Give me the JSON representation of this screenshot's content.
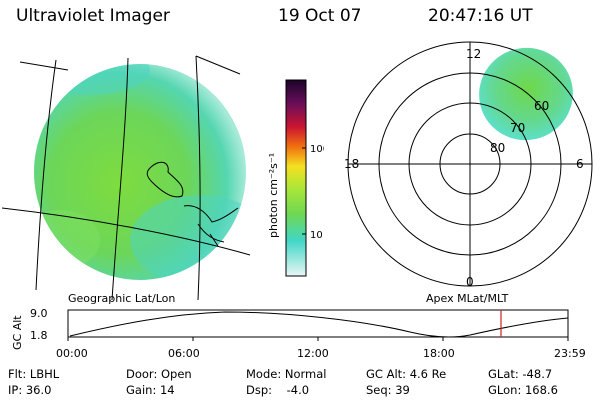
{
  "header": {
    "instrument": "Ultraviolet Imager",
    "date": "19 Oct 07",
    "time": "20:47:16 UT"
  },
  "colorbar": {
    "label": "photon cm⁻²s⁻¹",
    "ticks": [
      "100",
      "10"
    ]
  },
  "polar_plot": {
    "mlt_labels": {
      "top": "12",
      "left": "18",
      "right": "6",
      "bottom": "0"
    },
    "lat_labels": [
      "60",
      "70",
      "80"
    ]
  },
  "geo_label": "Geographic Lat/Lon",
  "apex_label": "Apex MLat/MLT",
  "altitude_plot": {
    "ylabel": "GC Alt",
    "yticks": [
      "9.0",
      "1.8"
    ],
    "xticks": [
      "00:00",
      "06:00",
      "12:00",
      "18:00",
      "23:59"
    ],
    "current_time_marker": "20:47"
  },
  "colors": {
    "marker": "#cc2222",
    "fill_green": "#6ed84a",
    "fill_cyan": "#5ce0d2"
  },
  "info": {
    "flt": "Flt: LBHL",
    "door": "Door: Open",
    "mode": "Mode: Normal",
    "gcalt": "GC Alt: 4.6 Re",
    "glat": "GLat: -48.7",
    "ip": "IP: 36.0",
    "gain": "Gain: 14",
    "dsp": "Dsp:    -4.0",
    "seq": "Seq: 39",
    "glon": "GLon: 168.6"
  }
}
